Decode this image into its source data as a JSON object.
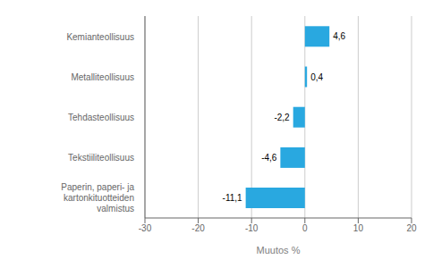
{
  "chart_data": {
    "type": "bar",
    "orientation": "horizontal",
    "categories": [
      "Paperin, paperi- ja kartonkituotteiden valmistus",
      "Tekstiiliteollisuus",
      "Tehdasteollisuus",
      "Metalliteollisuus",
      "Kemianteollisuus"
    ],
    "values": [
      -11.1,
      -4.6,
      -2.2,
      0.4,
      4.6
    ],
    "value_labels": [
      "-11,1",
      "-4,6",
      "-2,2",
      "0,4",
      "4,6"
    ],
    "data_labels": true,
    "color": "#29a8e0",
    "xlim": [
      -30,
      20
    ],
    "xticks": [
      -30,
      -20,
      -10,
      0,
      10,
      20
    ],
    "xlabel": "Muutos %",
    "grid": true
  }
}
